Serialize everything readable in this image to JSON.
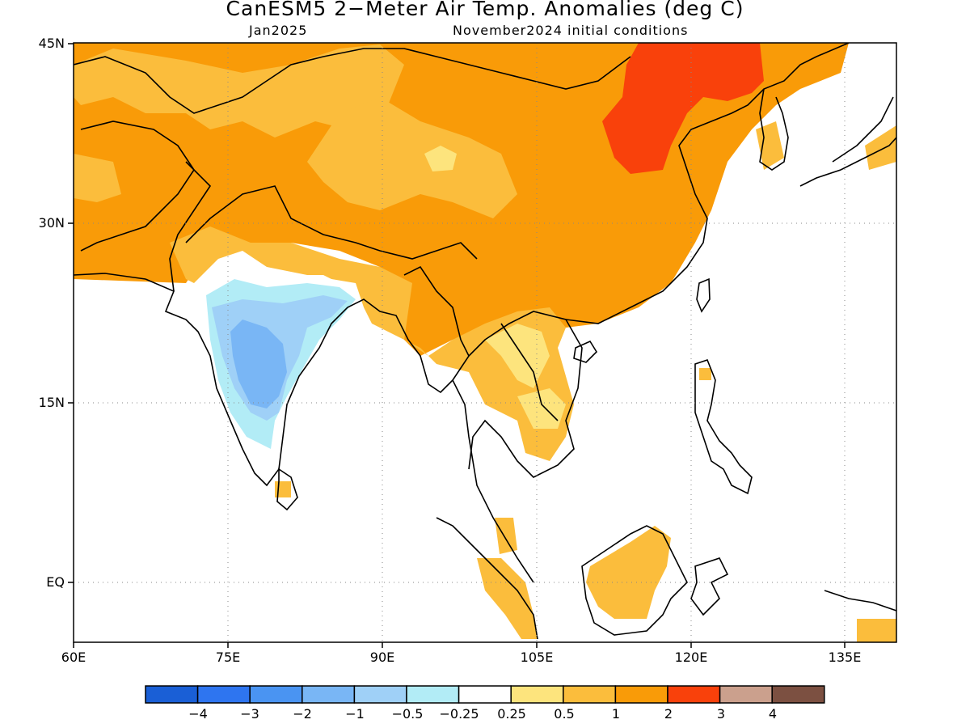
{
  "title": "CanESM5 2−Meter Air Temp. Anomalies (deg C)",
  "subtitle_left": "Jan2025",
  "subtitle_right": "November2024 initial conditions",
  "map": {
    "lon_range": [
      60,
      140
    ],
    "lat_range": [
      -6,
      45
    ],
    "lat_ticks": [
      "45N",
      "30N",
      "15N",
      "EQ"
    ],
    "lon_ticks": [
      "60E",
      "75E",
      "90E",
      "105E",
      "120E",
      "135E"
    ],
    "grid": "dotted"
  },
  "colorbar": {
    "colors": [
      "#1a5fd6",
      "#2e75f0",
      "#4a94f2",
      "#79b6f5",
      "#9fd0f7",
      "#b2ecf6",
      "#ffffff",
      "#fde47d",
      "#fbbd3c",
      "#f99b08",
      "#f9410b",
      "#cba08d",
      "#7c5041"
    ],
    "labels": [
      "−4",
      "−3",
      "−2",
      "−1",
      "−0.5",
      "−0.25",
      "0.25",
      "0.5",
      "1",
      "2",
      "3",
      "4"
    ]
  },
  "colors": {
    "anomaly_0_5_to_1": "#fbbd3c",
    "anomaly_1_to_2": "#f99b08",
    "anomaly_2_to_3": "#f9410b",
    "anomaly_0_25_to_0_5": "#fde47d",
    "anomaly_neg_0_5_to_neg_0_25": "#b2ecf6",
    "anomaly_neg_1_to_neg_0_5": "#9fd0f7",
    "anomaly_neg_2_to_neg_1": "#79b6f5"
  }
}
